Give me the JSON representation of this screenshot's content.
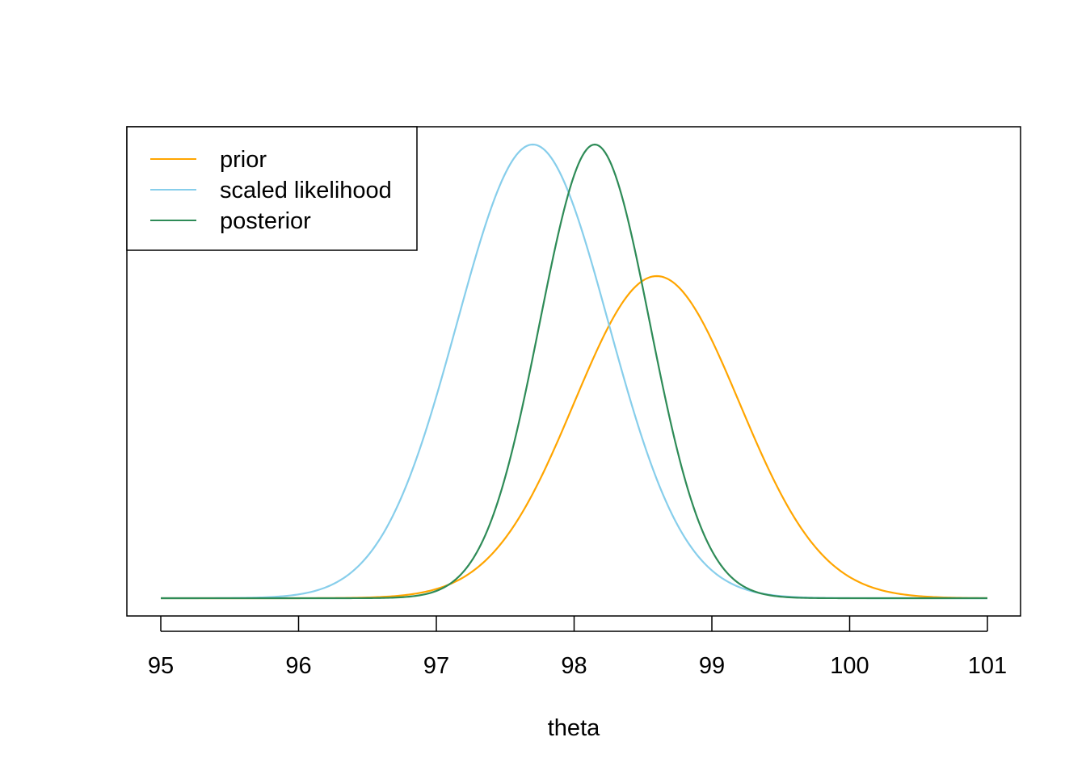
{
  "chart_data": {
    "type": "line",
    "title": "",
    "xlabel": "theta",
    "ylabel": "",
    "xlim": [
      95,
      101
    ],
    "ylim": [
      0,
      1
    ],
    "x_ticks": [
      95,
      96,
      97,
      98,
      99,
      100,
      101
    ],
    "y_axis_shown": false,
    "grid": false,
    "legend_position": "top-left",
    "series": [
      {
        "name": "prior",
        "color": "#FFA500",
        "mean": 98.6,
        "sd": 0.6,
        "peak": 0.71
      },
      {
        "name": "scaled likelihood",
        "color": "#87CEEB",
        "mean": 97.7,
        "sd": 0.55,
        "peak": 1.0
      },
      {
        "name": "posterior",
        "color": "#2E8B57",
        "mean": 98.15,
        "sd": 0.4,
        "peak": 1.0
      }
    ]
  }
}
